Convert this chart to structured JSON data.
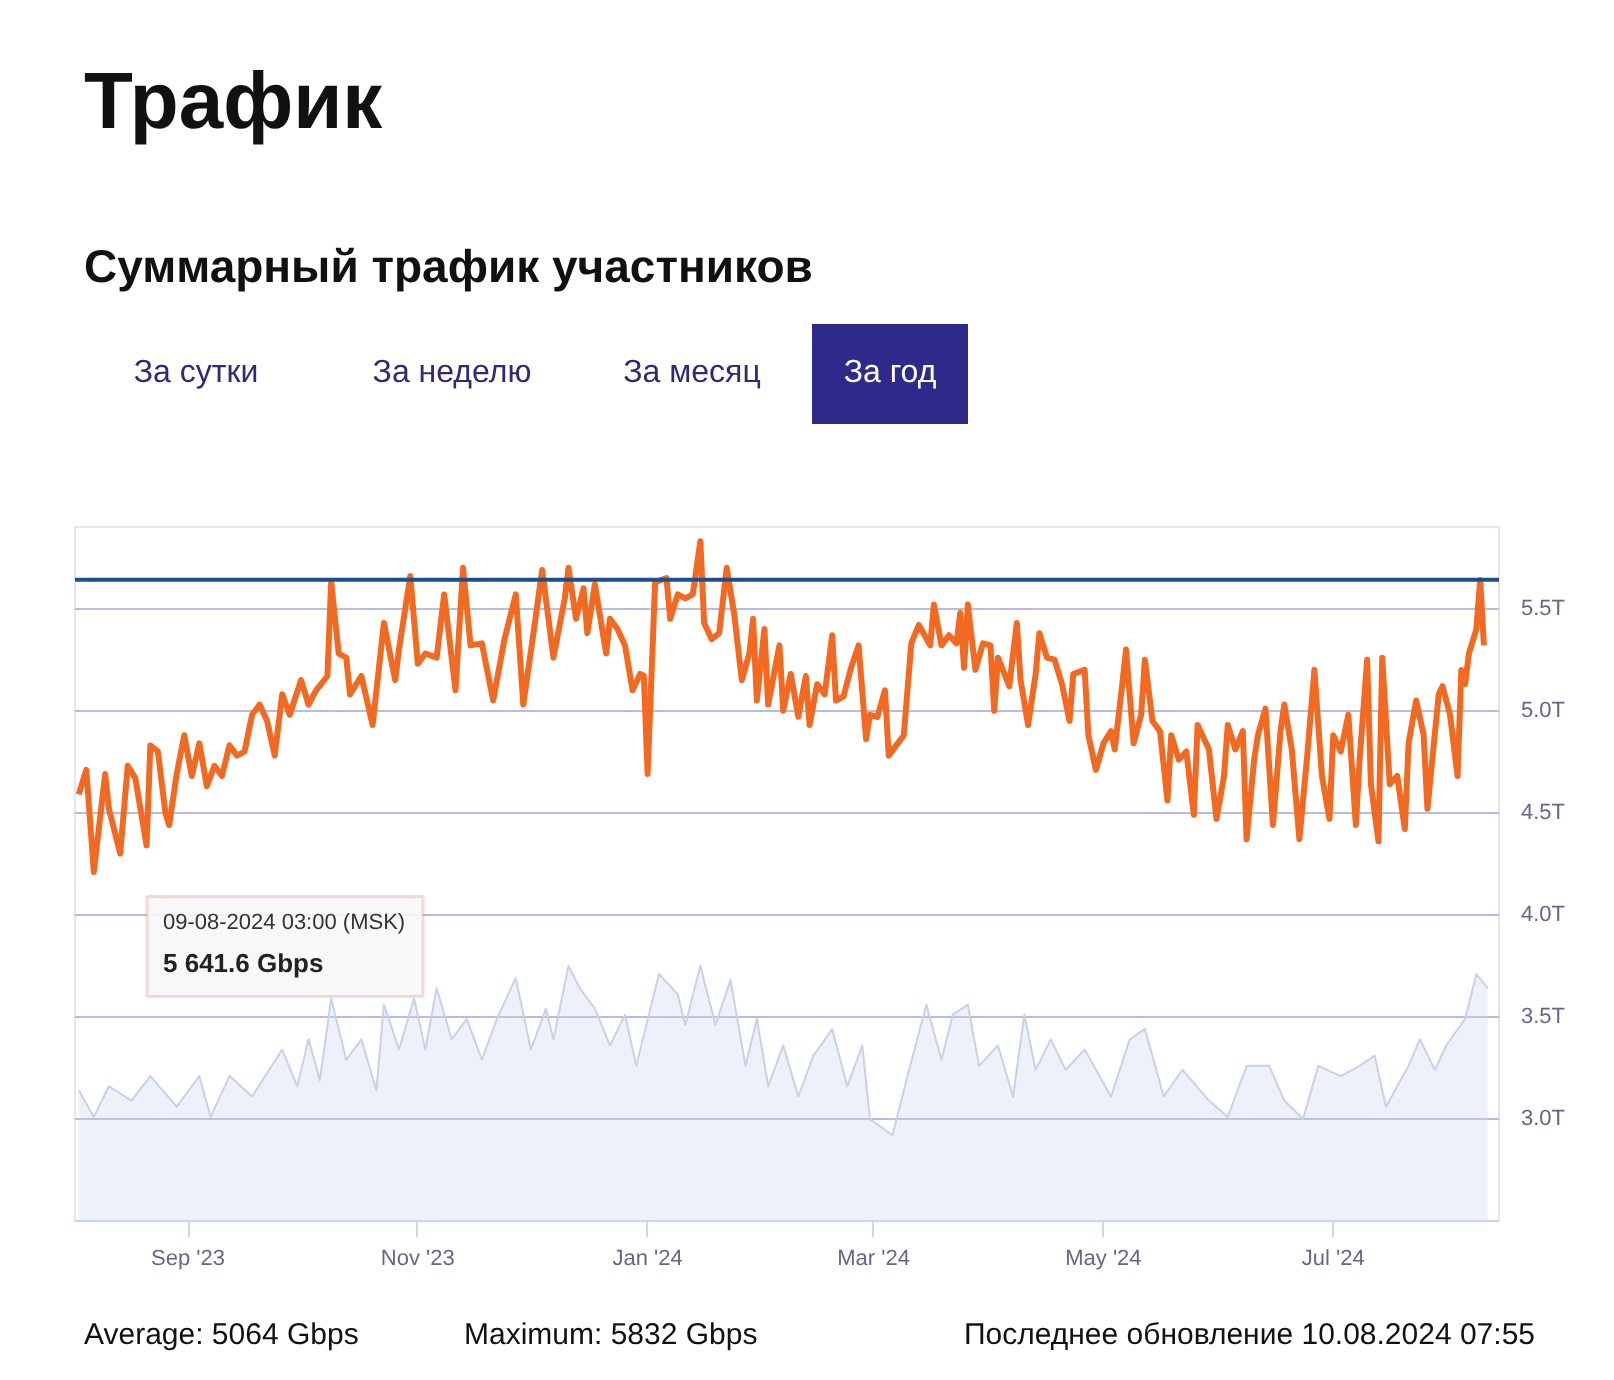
{
  "chart_data": {
    "type": "line",
    "title": "Трафик",
    "subtitle": "Суммарный трафик участников",
    "x": [
      "2023-08-03",
      "2023-08-05",
      "2023-08-07",
      "2023-08-10",
      "2023-08-11",
      "2023-08-14",
      "2023-08-16",
      "2023-08-18",
      "2023-08-21",
      "2023-08-22",
      "2023-08-24",
      "2023-08-26",
      "2023-08-27",
      "2023-08-29",
      "2023-08-31",
      "2023-09-02",
      "2023-09-04",
      "2023-09-06",
      "2023-09-08",
      "2023-09-10",
      "2023-09-12",
      "2023-09-14",
      "2023-09-16",
      "2023-09-18",
      "2023-09-20",
      "2023-09-22",
      "2023-09-24",
      "2023-09-26",
      "2023-09-28",
      "2023-10-01",
      "2023-10-03",
      "2023-10-05",
      "2023-10-08",
      "2023-10-09",
      "2023-10-11",
      "2023-10-13",
      "2023-10-14",
      "2023-10-17",
      "2023-10-20",
      "2023-10-23",
      "2023-10-26",
      "2023-10-27",
      "2023-10-30",
      "2023-11-01",
      "2023-11-03",
      "2023-11-06",
      "2023-11-08",
      "2023-11-11",
      "2023-11-13",
      "2023-11-15",
      "2023-11-18",
      "2023-11-21",
      "2023-11-24",
      "2023-11-27",
      "2023-11-29",
      "2023-12-02",
      "2023-12-04",
      "2023-12-07",
      "2023-12-10",
      "2023-12-11",
      "2023-12-13",
      "2023-12-15",
      "2023-12-16",
      "2023-12-18",
      "2023-12-21",
      "2023-12-22",
      "2023-12-24",
      "2023-12-26",
      "2023-12-28",
      "2023-12-30",
      "2023-12-31",
      "2024-01-01",
      "2024-01-03",
      "2024-01-06",
      "2024-01-07",
      "2024-01-09",
      "2024-01-11",
      "2024-01-13",
      "2024-01-15",
      "2024-01-16",
      "2024-01-18",
      "2024-01-20",
      "2024-01-22",
      "2024-01-24",
      "2024-01-26",
      "2024-01-28",
      "2024-01-29",
      "2024-01-30",
      "2024-02-01",
      "2024-02-02",
      "2024-02-05",
      "2024-02-06",
      "2024-02-08",
      "2024-02-10",
      "2024-02-12",
      "2024-02-13",
      "2024-02-15",
      "2024-02-17",
      "2024-02-19",
      "2024-02-20",
      "2024-02-22",
      "2024-02-24",
      "2024-02-26",
      "2024-02-28",
      "2024-02-29",
      "2024-03-02",
      "2024-03-04",
      "2024-03-05",
      "2024-03-07",
      "2024-03-09",
      "2024-03-11",
      "2024-03-13",
      "2024-03-16",
      "2024-03-17",
      "2024-03-19",
      "2024-03-21",
      "2024-03-23",
      "2024-03-24",
      "2024-03-25",
      "2024-03-26",
      "2024-03-28",
      "2024-03-30",
      "2024-04-01",
      "2024-04-02",
      "2024-04-03",
      "2024-04-06",
      "2024-04-08",
      "2024-04-09",
      "2024-04-11",
      "2024-04-13",
      "2024-04-14",
      "2024-04-16",
      "2024-04-18",
      "2024-04-20",
      "2024-04-22",
      "2024-04-23",
      "2024-04-26",
      "2024-04-27",
      "2024-04-29",
      "2024-05-01",
      "2024-05-03",
      "2024-05-04",
      "2024-05-06",
      "2024-05-07",
      "2024-05-09",
      "2024-05-11",
      "2024-05-12",
      "2024-05-14",
      "2024-05-16",
      "2024-05-18",
      "2024-05-19",
      "2024-05-21",
      "2024-05-23",
      "2024-05-25",
      "2024-05-26",
      "2024-05-29",
      "2024-05-31",
      "2024-06-02",
      "2024-06-03",
      "2024-06-05",
      "2024-06-07",
      "2024-06-08",
      "2024-06-10",
      "2024-06-11",
      "2024-06-13",
      "2024-06-15",
      "2024-06-17",
      "2024-06-18",
      "2024-06-20",
      "2024-06-22",
      "2024-06-24",
      "2024-06-26",
      "2024-06-28",
      "2024-06-30",
      "2024-07-01",
      "2024-07-03",
      "2024-07-05",
      "2024-07-07",
      "2024-07-08",
      "2024-07-10",
      "2024-07-11",
      "2024-07-13",
      "2024-07-14",
      "2024-07-16",
      "2024-07-18",
      "2024-07-20",
      "2024-07-21",
      "2024-07-23",
      "2024-07-25",
      "2024-07-26",
      "2024-07-29",
      "2024-07-30",
      "2024-08-01",
      "2024-08-03",
      "2024-08-04",
      "2024-08-05",
      "2024-08-06",
      "2024-08-08",
      "2024-08-09",
      "2024-08-10"
    ],
    "series": [
      {
        "color": "#f26a22",
        "values": [
          4.59,
          4.71,
          4.21,
          4.69,
          4.52,
          4.3,
          4.73,
          4.67,
          4.34,
          4.83,
          4.8,
          4.5,
          4.44,
          4.69,
          4.88,
          4.68,
          4.84,
          4.63,
          4.73,
          4.68,
          4.83,
          4.78,
          4.8,
          4.98,
          5.03,
          4.95,
          4.78,
          5.08,
          4.98,
          5.15,
          5.03,
          5.1,
          5.17,
          5.63,
          5.28,
          5.26,
          5.08,
          5.17,
          4.93,
          5.43,
          5.15,
          5.3,
          5.66,
          5.23,
          5.28,
          5.26,
          5.57,
          5.1,
          5.7,
          5.32,
          5.33,
          5.05,
          5.35,
          5.57,
          5.03,
          5.42,
          5.69,
          5.26,
          5.55,
          5.7,
          5.45,
          5.6,
          5.38,
          5.62,
          5.28,
          5.45,
          5.4,
          5.32,
          5.1,
          5.18,
          5.17,
          4.69,
          5.63,
          5.65,
          5.45,
          5.57,
          5.55,
          5.57,
          5.83,
          5.43,
          5.35,
          5.38,
          5.7,
          5.47,
          5.15,
          5.28,
          5.45,
          5.05,
          5.4,
          5.03,
          5.32,
          5.0,
          5.18,
          4.97,
          5.17,
          4.93,
          5.13,
          5.08,
          5.37,
          5.05,
          5.07,
          5.21,
          5.32,
          4.86,
          4.98,
          4.97,
          5.1,
          4.78,
          4.83,
          4.88,
          5.33,
          5.42,
          5.32,
          5.52,
          5.32,
          5.37,
          5.33,
          5.48,
          5.21,
          5.52,
          5.2,
          5.33,
          5.32,
          5.0,
          5.26,
          5.12,
          5.43,
          5.15,
          4.93,
          5.18,
          5.38,
          5.26,
          5.25,
          5.13,
          4.95,
          5.18,
          5.2,
          4.88,
          4.71,
          4.84,
          4.9,
          4.81,
          5.13,
          5.3,
          4.84,
          4.98,
          5.25,
          4.95,
          4.9,
          4.56,
          4.88,
          4.76,
          4.8,
          4.49,
          4.93,
          4.81,
          4.47,
          4.68,
          4.93,
          4.81,
          4.9,
          4.37,
          4.76,
          4.88,
          5.01,
          4.44,
          4.9,
          5.03,
          4.81,
          4.37,
          4.76,
          5.2,
          4.68,
          4.47,
          4.88,
          4.8,
          4.98,
          4.44,
          4.76,
          5.25,
          4.64,
          4.36,
          5.26,
          4.64,
          4.68,
          4.42,
          4.84,
          5.05,
          4.88,
          4.52,
          5.08,
          5.12,
          4.98,
          4.68,
          5.2,
          5.13,
          5.28,
          5.4,
          5.64,
          5.32
        ]
      },
      {
        "type": "area",
        "color": "#c8d0ec",
        "x": [
          "2023-08-03",
          "2023-08-07",
          "2023-08-11",
          "2023-08-17",
          "2023-08-22",
          "2023-08-29",
          "2023-09-04",
          "2023-09-07",
          "2023-09-12",
          "2023-09-18",
          "2023-09-26",
          "2023-09-30",
          "2023-10-03",
          "2023-10-06",
          "2023-10-09",
          "2023-10-13",
          "2023-10-17",
          "2023-10-21",
          "2023-10-23",
          "2023-10-27",
          "2023-10-31",
          "2023-11-03",
          "2023-11-06",
          "2023-11-10",
          "2023-11-14",
          "2023-11-18",
          "2023-11-22",
          "2023-11-27",
          "2023-12-01",
          "2023-12-05",
          "2023-12-07",
          "2023-12-11",
          "2023-12-14",
          "2023-12-18",
          "2023-12-22",
          "2023-12-26",
          "2023-12-29",
          "2024-01-04",
          "2024-01-09",
          "2024-01-11",
          "2024-01-15",
          "2024-01-19",
          "2024-01-23",
          "2024-01-27",
          "2024-01-30",
          "2024-02-02",
          "2024-02-06",
          "2024-02-10",
          "2024-02-14",
          "2024-02-19",
          "2024-02-23",
          "2024-02-27",
          "2024-02-29",
          "2024-03-06",
          "2024-03-10",
          "2024-03-15",
          "2024-03-19",
          "2024-03-22",
          "2024-03-26",
          "2024-03-29",
          "2024-04-03",
          "2024-04-07",
          "2024-04-10",
          "2024-04-13",
          "2024-04-17",
          "2024-04-21",
          "2024-04-26",
          "2024-05-03",
          "2024-05-08",
          "2024-05-12",
          "2024-05-17",
          "2024-05-22",
          "2024-05-29",
          "2024-06-03",
          "2024-06-08",
          "2024-06-14",
          "2024-06-18",
          "2024-06-23",
          "2024-06-27",
          "2024-07-03",
          "2024-07-08",
          "2024-07-12",
          "2024-07-15",
          "2024-07-21",
          "2024-07-24",
          "2024-07-28",
          "2024-07-31",
          "2024-08-05",
          "2024-08-08",
          "2024-08-11"
        ],
        "values": [
          3.14,
          3.01,
          3.16,
          3.09,
          3.21,
          3.06,
          3.21,
          3.01,
          3.21,
          3.11,
          3.34,
          3.16,
          3.39,
          3.19,
          3.59,
          3.29,
          3.39,
          3.14,
          3.56,
          3.34,
          3.59,
          3.34,
          3.64,
          3.39,
          3.49,
          3.29,
          3.49,
          3.69,
          3.34,
          3.54,
          3.39,
          3.75,
          3.64,
          3.54,
          3.36,
          3.51,
          3.26,
          3.71,
          3.61,
          3.46,
          3.75,
          3.46,
          3.68,
          3.26,
          3.49,
          3.16,
          3.36,
          3.11,
          3.31,
          3.44,
          3.16,
          3.36,
          3.0,
          2.92,
          3.21,
          3.56,
          3.29,
          3.51,
          3.56,
          3.26,
          3.36,
          3.11,
          3.51,
          3.24,
          3.39,
          3.24,
          3.34,
          3.11,
          3.39,
          3.44,
          3.11,
          3.24,
          3.09,
          3.01,
          3.26,
          3.26,
          3.09,
          3.0,
          3.26,
          3.21,
          3.26,
          3.31,
          3.06,
          3.26,
          3.39,
          3.24,
          3.36,
          3.49,
          3.71,
          3.64
        ]
      }
    ],
    "xlim": [
      "2023-08-02",
      "2024-08-14"
    ],
    "xticks": [
      {
        "value": "2023-09-01",
        "label": "Sep '23"
      },
      {
        "value": "2023-11-01",
        "label": "Nov '23"
      },
      {
        "value": "2024-01-01",
        "label": "Jan '24"
      },
      {
        "value": "2024-03-01",
        "label": "Mar '24"
      },
      {
        "value": "2024-05-01",
        "label": "May '24"
      },
      {
        "value": "2024-07-01",
        "label": "Jul '24"
      }
    ],
    "ylim": [
      2.5,
      5.9
    ],
    "yticks": [
      {
        "value": 3.0,
        "label": "3.0T"
      },
      {
        "value": 3.5,
        "label": "3.5T"
      },
      {
        "value": 4.0,
        "label": "4.0T"
      },
      {
        "value": 4.5,
        "label": "4.5T"
      },
      {
        "value": 5.0,
        "label": "5.0T"
      },
      {
        "value": 5.5,
        "label": "5.5T"
      }
    ],
    "grid": "y",
    "ref_lines": [
      {
        "axis": "y",
        "value": 5.6416,
        "color": "#1f4f8a"
      }
    ],
    "annotations": [
      "За сутки",
      "За неделю",
      "За месяц",
      "За год",
      "09-08-2024 03:00 (MSK)",
      "5 641.6 Gbps",
      "Average: 5064 Gbps",
      "Maximum: 5832 Gbps",
      "Последнее обновление 10.08.2024 07:55"
    ]
  }
}
